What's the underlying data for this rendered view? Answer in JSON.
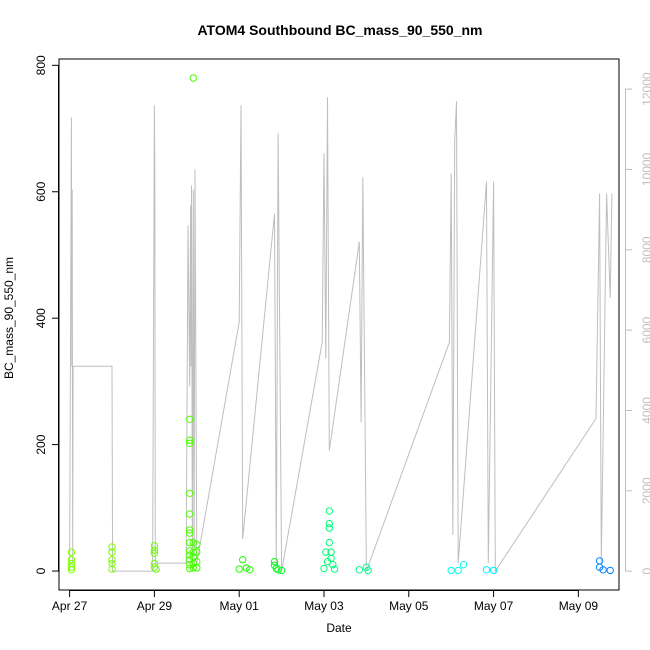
{
  "chart_data": {
    "type": "scatter",
    "title": "ATOM4 Southbound BC_mass_90_550_nm",
    "xlabel": "Date",
    "ylabel": "BC_mass_90_550_nm",
    "x_ticks": [
      "Apr 27",
      "Apr 29",
      "May 01",
      "May 03",
      "May 05",
      "May 07",
      "May 09"
    ],
    "y_ticks": [
      "0",
      "200",
      "400",
      "600",
      "800"
    ],
    "y2_ticks": [
      "0",
      "2000",
      "4000",
      "6000",
      "8000",
      "10000",
      "12000"
    ],
    "xlim": [
      "2018-04-26T18:00",
      "2018-05-09T23:00"
    ],
    "ylim": [
      -30,
      810
    ],
    "y2lim": [
      -470,
      12750
    ],
    "line_color": "#bebebe",
    "series": [
      {
        "type": "points",
        "values": [
          [
            "2018-04-27T01:00",
            30,
            "#7fff00"
          ],
          [
            "2018-04-27T01:00",
            18,
            "#7fff00"
          ],
          [
            "2018-04-27T01:00",
            12,
            "#7fff00"
          ],
          [
            "2018-04-27T01:00",
            6,
            "#7fff00"
          ],
          [
            "2018-04-27T01:00",
            2,
            "#7fff00"
          ],
          [
            "2018-04-28T00:00",
            38,
            "#7cff00"
          ],
          [
            "2018-04-28T00:00",
            30,
            "#7cff00"
          ],
          [
            "2018-04-28T00:00",
            18,
            "#7cff00"
          ],
          [
            "2018-04-28T00:00",
            12,
            "#7cff00"
          ],
          [
            "2018-04-28T00:00",
            3,
            "#7cff00"
          ],
          [
            "2018-04-29T00:00",
            40,
            "#6cff00"
          ],
          [
            "2018-04-29T00:00",
            33,
            "#6cff00"
          ],
          [
            "2018-04-29T00:00",
            28,
            "#6cff00"
          ],
          [
            "2018-04-29T00:00",
            12,
            "#6cff00"
          ],
          [
            "2018-04-29T00:00",
            6,
            "#6cff00"
          ],
          [
            "2018-04-29T01:00",
            3,
            "#6cff00"
          ],
          [
            "2018-04-29T20:00",
            240,
            "#4cff00"
          ],
          [
            "2018-04-29T20:00",
            207,
            "#4cff00"
          ],
          [
            "2018-04-29T20:00",
            202,
            "#4cff00"
          ],
          [
            "2018-04-29T20:00",
            123,
            "#4cff00"
          ],
          [
            "2018-04-29T20:00",
            90,
            "#4cff00"
          ],
          [
            "2018-04-29T20:00",
            65,
            "#4cff00"
          ],
          [
            "2018-04-29T20:00",
            60,
            "#4cff00"
          ],
          [
            "2018-04-29T20:00",
            45,
            "#4cff00"
          ],
          [
            "2018-04-29T20:00",
            32,
            "#4cff00"
          ],
          [
            "2018-04-29T20:00",
            25,
            "#4cff00"
          ],
          [
            "2018-04-29T20:00",
            18,
            "#4cff00"
          ],
          [
            "2018-04-29T20:00",
            10,
            "#4cff00"
          ],
          [
            "2018-04-29T20:00",
            4,
            "#4cff00"
          ],
          [
            "2018-04-29T22:00",
            780,
            "#44ff00"
          ],
          [
            "2018-04-29T22:00",
            45,
            "#44ff00"
          ],
          [
            "2018-04-29T22:00",
            30,
            "#44ff00"
          ],
          [
            "2018-04-29T22:00",
            22,
            "#44ff00"
          ],
          [
            "2018-04-29T22:00",
            12,
            "#44ff00"
          ],
          [
            "2018-04-29T22:00",
            5,
            "#44ff00"
          ],
          [
            "2018-04-30T00:00",
            42,
            "#40ff00"
          ],
          [
            "2018-04-30T00:00",
            30,
            "#40ff00"
          ],
          [
            "2018-04-30T00:00",
            15,
            "#40ff00"
          ],
          [
            "2018-04-30T00:00",
            5,
            "#40ff00"
          ],
          [
            "2018-05-01T00:00",
            3,
            "#1fff00"
          ],
          [
            "2018-05-01T02:00",
            18,
            "#1cff00"
          ],
          [
            "2018-05-01T04:00",
            5,
            "#1cff00"
          ],
          [
            "2018-05-01T06:00",
            2,
            "#1cff00"
          ],
          [
            "2018-05-01T20:00",
            15,
            "#00ff14"
          ],
          [
            "2018-05-01T20:00",
            9,
            "#00ff14"
          ],
          [
            "2018-05-01T21:00",
            4,
            "#00ff14"
          ],
          [
            "2018-05-01T22:00",
            2,
            "#00ff18"
          ],
          [
            "2018-05-02T00:00",
            1,
            "#00ff1c"
          ],
          [
            "2018-05-03T00:00",
            4,
            "#00ff70"
          ],
          [
            "2018-05-03T01:00",
            30,
            "#00ff74"
          ],
          [
            "2018-05-03T02:00",
            15,
            "#00ff74"
          ],
          [
            "2018-05-03T03:00",
            95,
            "#00ff78"
          ],
          [
            "2018-05-03T03:00",
            75,
            "#00ff78"
          ],
          [
            "2018-05-03T03:00",
            68,
            "#00ff78"
          ],
          [
            "2018-05-03T03:00",
            45,
            "#00ff78"
          ],
          [
            "2018-05-03T04:00",
            30,
            "#00ff78"
          ],
          [
            "2018-05-03T04:00",
            20,
            "#00ff78"
          ],
          [
            "2018-05-03T05:00",
            10,
            "#00ff7c"
          ],
          [
            "2018-05-03T06:00",
            3,
            "#00ff7c"
          ],
          [
            "2018-05-03T20:00",
            2,
            "#00ff8c"
          ],
          [
            "2018-05-04T00:00",
            6,
            "#00ff90"
          ],
          [
            "2018-05-04T01:00",
            1,
            "#00ff90"
          ],
          [
            "2018-05-06T00:00",
            1,
            "#00ffe8"
          ],
          [
            "2018-05-06T04:00",
            1,
            "#00fff0"
          ],
          [
            "2018-05-06T07:00",
            10,
            "#00fff4"
          ],
          [
            "2018-05-06T20:00",
            2,
            "#00f4ff"
          ],
          [
            "2018-05-07T00:00",
            1,
            "#00ecff"
          ],
          [
            "2018-05-09T12:00",
            16,
            "#0088ff"
          ],
          [
            "2018-05-09T12:00",
            6,
            "#0088ff"
          ],
          [
            "2018-05-09T14:00",
            2,
            "#0080ff"
          ],
          [
            "2018-05-09T18:00",
            1,
            "#0080ff"
          ]
        ]
      },
      {
        "type": "altitude_line",
        "values": [
          [
            "2018-04-27T00:00",
            0
          ],
          [
            "2018-04-27T01:00",
            11300
          ],
          [
            "2018-04-27T01:15",
            5100
          ],
          [
            "2018-04-27T01:30",
            9500
          ],
          [
            "2018-04-27T01:45",
            200
          ],
          [
            "2018-04-27T02:00",
            5100
          ],
          [
            "2018-04-28T00:00",
            5100
          ],
          [
            "2018-04-28T00:20",
            0
          ],
          [
            "2018-04-28T23:00",
            0
          ],
          [
            "2018-04-29T00:00",
            11600
          ],
          [
            "2018-04-29T00:15",
            10200
          ],
          [
            "2018-04-29T00:30",
            200
          ],
          [
            "2018-04-29T18:00",
            200
          ],
          [
            "2018-04-29T19:00",
            8600
          ],
          [
            "2018-04-29T20:00",
            4600
          ],
          [
            "2018-04-29T20:30",
            9100
          ],
          [
            "2018-04-29T20:45",
            5100
          ],
          [
            "2018-04-29T21:00",
            9600
          ],
          [
            "2018-04-29T21:30",
            0
          ],
          [
            "2018-04-29T22:00",
            9500
          ],
          [
            "2018-04-29T22:30",
            200
          ],
          [
            "2018-04-29T23:00",
            10000
          ],
          [
            "2018-04-30T00:00",
            200
          ],
          [
            "2018-05-01T00:00",
            6200
          ],
          [
            "2018-05-01T01:00",
            11600
          ],
          [
            "2018-05-01T02:00",
            800
          ],
          [
            "2018-05-01T20:00",
            8900
          ],
          [
            "2018-05-01T21:00",
            200
          ],
          [
            "2018-05-01T22:00",
            10900
          ],
          [
            "2018-05-02T00:00",
            0
          ],
          [
            "2018-05-02T23:00",
            5700
          ],
          [
            "2018-05-03T00:00",
            10400
          ],
          [
            "2018-05-03T01:00",
            5300
          ],
          [
            "2018-05-03T02:00",
            11800
          ],
          [
            "2018-05-03T03:00",
            3000
          ],
          [
            "2018-05-03T20:00",
            8200
          ],
          [
            "2018-05-03T21:00",
            3700
          ],
          [
            "2018-05-03T22:00",
            9800
          ],
          [
            "2018-05-04T00:00",
            0
          ],
          [
            "2018-05-05T23:00",
            5700
          ],
          [
            "2018-05-06T00:00",
            9900
          ],
          [
            "2018-05-06T01:00",
            900
          ],
          [
            "2018-05-06T02:00",
            10700
          ],
          [
            "2018-05-06T03:00",
            11700
          ],
          [
            "2018-05-06T04:00",
            200
          ],
          [
            "2018-05-06T20:00",
            9700
          ],
          [
            "2018-05-06T21:00",
            200
          ],
          [
            "2018-05-07T00:00",
            9700
          ],
          [
            "2018-05-07T01:00",
            0
          ],
          [
            "2018-05-09T10:00",
            3800
          ],
          [
            "2018-05-09T12:00",
            9400
          ],
          [
            "2018-05-09T13:00",
            200
          ],
          [
            "2018-05-09T16:00",
            9400
          ],
          [
            "2018-05-09T18:00",
            6800
          ],
          [
            "2018-05-09T19:00",
            9400
          ]
        ]
      }
    ]
  }
}
